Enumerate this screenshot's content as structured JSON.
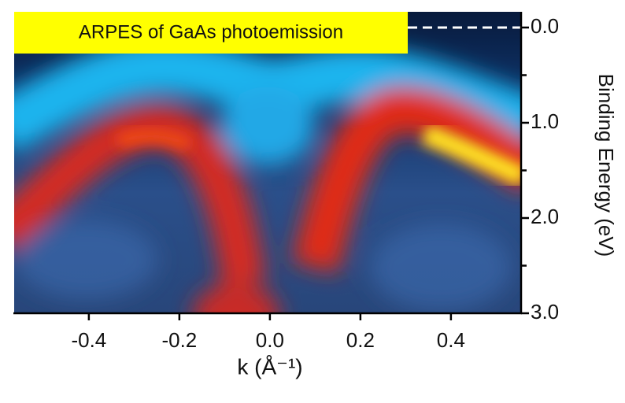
{
  "chart_data": {
    "type": "image",
    "title": "ARPES of GaAs photoemission",
    "xlabel": "k (Å⁻¹)",
    "ylabel": "Binding Energy (eV)",
    "xlim": [
      -0.565,
      0.555
    ],
    "xticks": [
      -0.4,
      -0.2,
      {
        "value": 0,
        "label": "0.0"
      },
      0.2,
      0.4
    ],
    "ylim": [
      -0.165,
      3.0
    ],
    "y_inverted": true,
    "yticks": [
      {
        "value": 0,
        "label": "0.0"
      },
      {
        "value": 1,
        "label": "1.0"
      },
      {
        "value": 2,
        "label": "2.0"
      },
      {
        "value": 3,
        "label": "3.0"
      }
    ],
    "y_minor_ticks": [
      0.5,
      1.5,
      2.5
    ]
  }
}
